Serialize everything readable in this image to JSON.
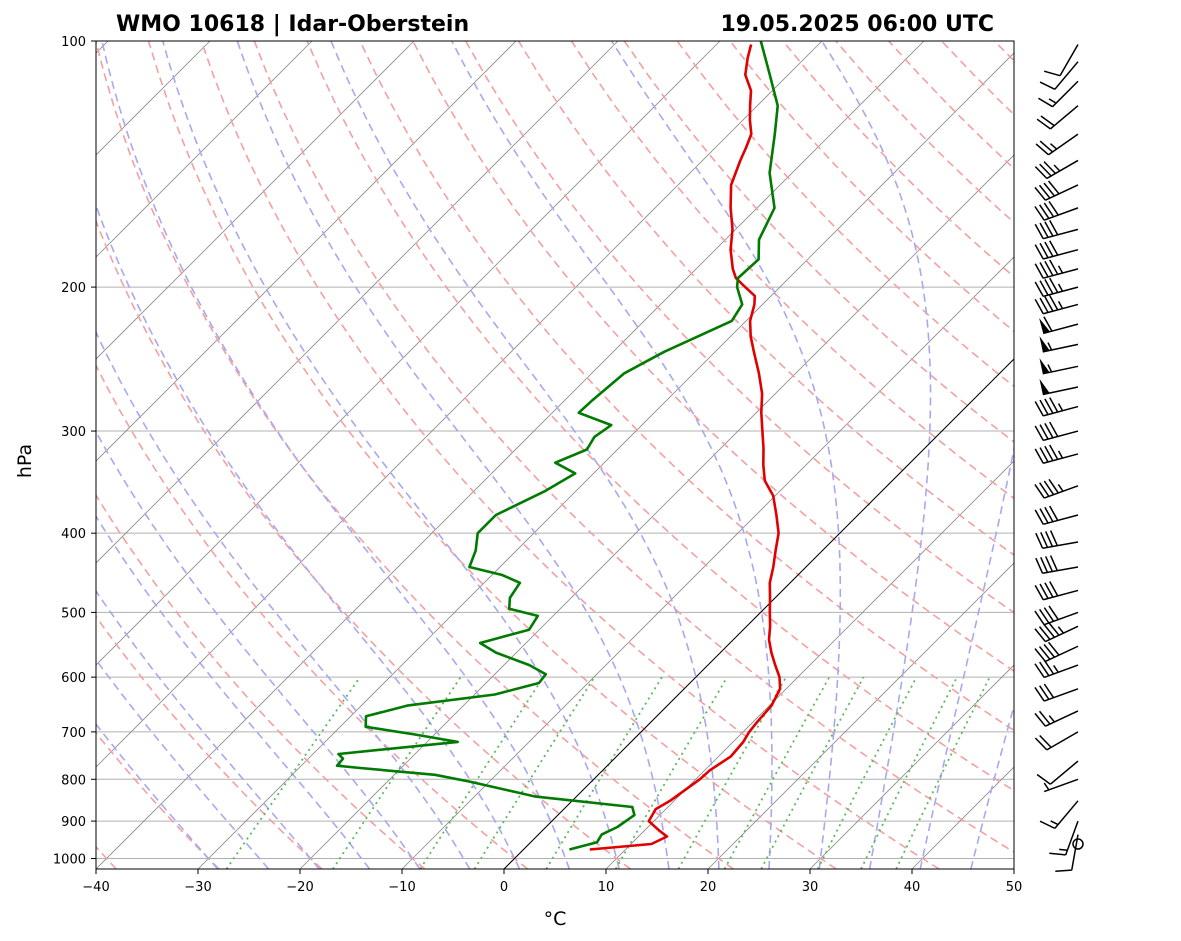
{
  "header": {
    "station": "WMO 10618 | Idar-Oberstein",
    "datetime": "19.05.2025 06:00 UTC"
  },
  "chart_data": {
    "type": "line",
    "title": "WMO 10618 | Idar-Oberstein",
    "subtitle": "19.05.2025 06:00 UTC",
    "xlabel": "°C",
    "ylabel": "hPa",
    "xlim": [
      -40,
      50
    ],
    "ylim": [
      1030,
      100
    ],
    "yscale": "log",
    "skew": true,
    "grid": true,
    "x_ticks": [
      -40,
      -30,
      -20,
      -10,
      0,
      10,
      20,
      30,
      40,
      50
    ],
    "x_tick_labels": [
      "−40",
      "−30",
      "−20",
      "−10",
      "0",
      "10",
      "20",
      "30",
      "40",
      "50"
    ],
    "y_ticks": [
      1000,
      900,
      800,
      700,
      600,
      500,
      400,
      300,
      200,
      100
    ],
    "y_tick_labels": [
      "1000",
      "900",
      "800",
      "700",
      "600",
      "500",
      "400",
      "300",
      "200",
      "100"
    ],
    "colors": {
      "temperature": "#e00000",
      "dewpoint": "#007a00",
      "dry_adiabats": "#f4a0a0",
      "moist_adiabats": "#a8a8f0",
      "mixing_ratio": "#5cb85c",
      "isotherms": "#888888",
      "zero_isotherm": "#000000",
      "isobars": "#b0b0b0"
    },
    "series": [
      {
        "values": [
          [
            975,
            6.5
          ],
          [
            960,
            12.0
          ],
          [
            940,
            12.8
          ],
          [
            925,
            11.5
          ],
          [
            900,
            9.5
          ],
          [
            870,
            9.0
          ],
          [
            850,
            9.6
          ],
          [
            800,
            10.4
          ],
          [
            780,
            10.5
          ],
          [
            750,
            11.2
          ],
          [
            720,
            11.0
          ],
          [
            700,
            10.6
          ],
          [
            680,
            10.4
          ],
          [
            650,
            10.2
          ],
          [
            620,
            9.4
          ],
          [
            600,
            8.2
          ],
          [
            580,
            6.6
          ],
          [
            560,
            5.0
          ],
          [
            540,
            3.5
          ],
          [
            520,
            2.3
          ],
          [
            500,
            0.9
          ],
          [
            480,
            -0.5
          ],
          [
            460,
            -2.0
          ],
          [
            440,
            -3.2
          ],
          [
            420,
            -4.6
          ],
          [
            400,
            -6.0
          ],
          [
            380,
            -8.0
          ],
          [
            360,
            -10.2
          ],
          [
            345,
            -12.5
          ],
          [
            330,
            -14.2
          ],
          [
            315,
            -15.8
          ],
          [
            300,
            -17.6
          ],
          [
            285,
            -19.5
          ],
          [
            270,
            -21.3
          ],
          [
            255,
            -23.6
          ],
          [
            240,
            -26.2
          ],
          [
            230,
            -28.0
          ],
          [
            220,
            -29.6
          ],
          [
            210,
            -30.8
          ],
          [
            205,
            -31.6
          ],
          [
            200,
            -33.4
          ],
          [
            195,
            -35.2
          ],
          [
            190,
            -36.4
          ],
          [
            180,
            -38.5
          ],
          [
            170,
            -40.3
          ],
          [
            160,
            -42.6
          ],
          [
            150,
            -44.8
          ],
          [
            140,
            -46.3
          ],
          [
            135,
            -47.0
          ],
          [
            130,
            -47.8
          ],
          [
            125,
            -49.3
          ],
          [
            120,
            -50.7
          ],
          [
            115,
            -52.1
          ],
          [
            110,
            -54.2
          ],
          [
            105,
            -55.6
          ],
          [
            101,
            -56.6
          ]
        ]
      },
      {
        "values": [
          [
            975,
            4.5
          ],
          [
            955,
            6.5
          ],
          [
            935,
            6.2
          ],
          [
            915,
            7.0
          ],
          [
            885,
            7.5
          ],
          [
            865,
            6.5
          ],
          [
            840,
            -4.0
          ],
          [
            805,
            -12.0
          ],
          [
            790,
            -16.0
          ],
          [
            775,
            -24.0
          ],
          [
            770,
            -26.5
          ],
          [
            755,
            -26.6
          ],
          [
            745,
            -27.5
          ],
          [
            720,
            -17.0
          ],
          [
            705,
            -22.0
          ],
          [
            690,
            -27.5
          ],
          [
            670,
            -28.5
          ],
          [
            650,
            -25.5
          ],
          [
            630,
            -18.0
          ],
          [
            610,
            -14.8
          ],
          [
            595,
            -15.0
          ],
          [
            580,
            -17.5
          ],
          [
            560,
            -22.0
          ],
          [
            545,
            -24.5
          ],
          [
            525,
            -21.0
          ],
          [
            505,
            -21.5
          ],
          [
            495,
            -25.0
          ],
          [
            480,
            -26.0
          ],
          [
            460,
            -26.5
          ],
          [
            450,
            -29.0
          ],
          [
            440,
            -33.0
          ],
          [
            420,
            -34.0
          ],
          [
            400,
            -35.5
          ],
          [
            380,
            -35.5
          ],
          [
            355,
            -33.0
          ],
          [
            338,
            -31.8
          ],
          [
            328,
            -34.8
          ],
          [
            316,
            -33.0
          ],
          [
            305,
            -33.5
          ],
          [
            295,
            -33.0
          ],
          [
            285,
            -37.4
          ],
          [
            275,
            -37.3
          ],
          [
            255,
            -36.8
          ],
          [
            240,
            -35.0
          ],
          [
            220,
            -31.4
          ],
          [
            210,
            -32.0
          ],
          [
            200,
            -34.2
          ],
          [
            195,
            -35.0
          ],
          [
            185,
            -34.8
          ],
          [
            175,
            -36.7
          ],
          [
            160,
            -38.3
          ],
          [
            145,
            -42.2
          ],
          [
            130,
            -45.5
          ],
          [
            120,
            -48.0
          ],
          [
            110,
            -51.8
          ],
          [
            100,
            -56.0
          ]
        ]
      }
    ],
    "wind_barbs": [
      {
        "p": 960,
        "speed_kt": 0
      },
      {
        "p": 935,
        "direction_deg": 190,
        "speed_kt": 10
      },
      {
        "p": 900,
        "direction_deg": 200,
        "speed_kt": 15
      },
      {
        "p": 850,
        "direction_deg": 220,
        "speed_kt": 15
      },
      {
        "p": 800,
        "direction_deg": 250,
        "speed_kt": 5
      },
      {
        "p": 760,
        "direction_deg": 230,
        "speed_kt": 10
      },
      {
        "p": 700,
        "direction_deg": 240,
        "speed_kt": 20
      },
      {
        "p": 660,
        "direction_deg": 245,
        "speed_kt": 25
      },
      {
        "p": 620,
        "direction_deg": 250,
        "speed_kt": 30
      },
      {
        "p": 580,
        "direction_deg": 250,
        "speed_kt": 35
      },
      {
        "p": 550,
        "direction_deg": 245,
        "speed_kt": 40
      },
      {
        "p": 520,
        "direction_deg": 245,
        "speed_kt": 45
      },
      {
        "p": 500,
        "direction_deg": 250,
        "speed_kt": 40
      },
      {
        "p": 470,
        "direction_deg": 255,
        "speed_kt": 40
      },
      {
        "p": 440,
        "direction_deg": 260,
        "speed_kt": 40
      },
      {
        "p": 410,
        "direction_deg": 260,
        "speed_kt": 40
      },
      {
        "p": 380,
        "direction_deg": 255,
        "speed_kt": 40
      },
      {
        "p": 350,
        "direction_deg": 250,
        "speed_kt": 45
      },
      {
        "p": 320,
        "direction_deg": 255,
        "speed_kt": 45
      },
      {
        "p": 300,
        "direction_deg": 255,
        "speed_kt": 40
      },
      {
        "p": 280,
        "direction_deg": 255,
        "speed_kt": 45
      },
      {
        "p": 265,
        "direction_deg": 258,
        "speed_kt": 50
      },
      {
        "p": 250,
        "direction_deg": 258,
        "speed_kt": 55
      },
      {
        "p": 235,
        "direction_deg": 258,
        "speed_kt": 55
      },
      {
        "p": 222,
        "direction_deg": 255,
        "speed_kt": 60
      },
      {
        "p": 210,
        "direction_deg": 255,
        "speed_kt": 45
      },
      {
        "p": 200,
        "direction_deg": 255,
        "speed_kt": 45
      },
      {
        "p": 190,
        "direction_deg": 255,
        "speed_kt": 45
      },
      {
        "p": 180,
        "direction_deg": 255,
        "speed_kt": 40
      },
      {
        "p": 170,
        "direction_deg": 255,
        "speed_kt": 40
      },
      {
        "p": 160,
        "direction_deg": 250,
        "speed_kt": 40
      },
      {
        "p": 150,
        "direction_deg": 245,
        "speed_kt": 40
      },
      {
        "p": 140,
        "direction_deg": 240,
        "speed_kt": 35
      },
      {
        "p": 130,
        "direction_deg": 235,
        "speed_kt": 25
      },
      {
        "p": 120,
        "direction_deg": 230,
        "speed_kt": 20
      },
      {
        "p": 112,
        "direction_deg": 225,
        "speed_kt": 15
      },
      {
        "p": 106,
        "direction_deg": 220,
        "speed_kt": 10
      },
      {
        "p": 101,
        "direction_deg": 210,
        "speed_kt": 10
      }
    ]
  }
}
